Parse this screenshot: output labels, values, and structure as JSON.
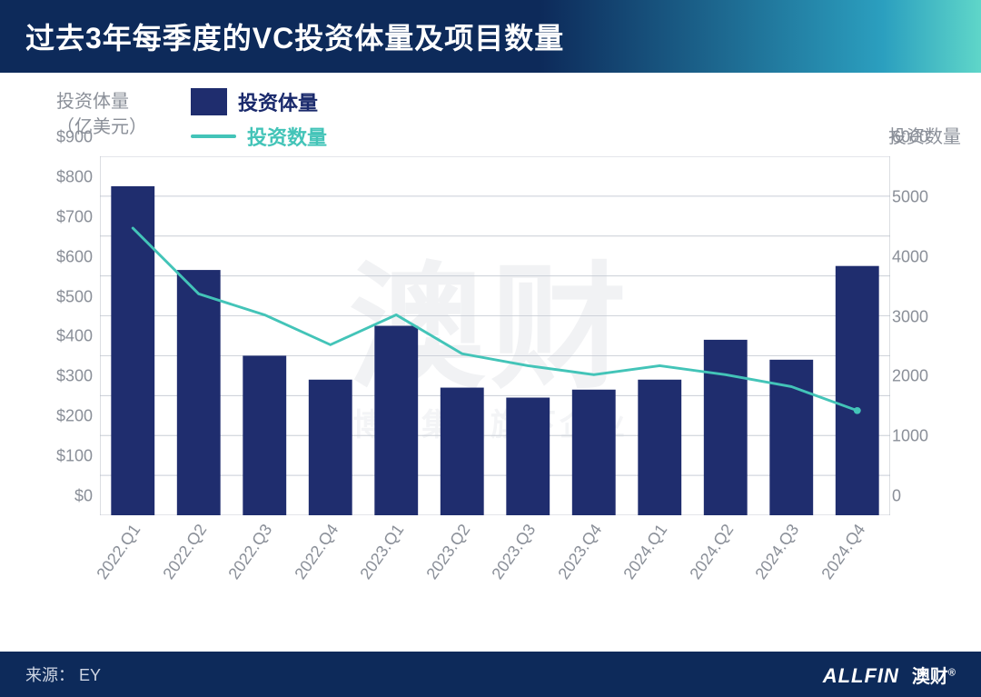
{
  "title": "过去3年每季度的VC投资体量及项目数量",
  "y_left_axis_title_line1": "投资体量",
  "y_left_axis_title_line2": "（亿美元）",
  "y_right_axis_title": "投资数量",
  "legend": {
    "bar_label": "投资体量",
    "line_label": "投资数量",
    "bar_color": "#1f2d6e",
    "line_color": "#43c4b8"
  },
  "watermark_main": "澳财",
  "watermark_sub": "博满集团旗下企业",
  "source_label": "来源：",
  "source_value": "EY",
  "brand_en": "ALLFIN",
  "brand_cn": "澳财",
  "brand_reg": "®",
  "chart": {
    "type": "bar+line",
    "categories": [
      "2022.Q1",
      "2022.Q2",
      "2022.Q3",
      "2022.Q4",
      "2023.Q1",
      "2023.Q2",
      "2023.Q3",
      "2023.Q4",
      "2024.Q1",
      "2024.Q2",
      "2024.Q3",
      "2024.Q4"
    ],
    "bar_values": [
      825,
      615,
      400,
      340,
      475,
      320,
      295,
      315,
      340,
      440,
      390,
      625
    ],
    "line_values": [
      4800,
      3700,
      3350,
      2850,
      3350,
      2700,
      2500,
      2350,
      2500,
      2350,
      2150,
      1750
    ],
    "y_left": {
      "min": 0,
      "max": 900,
      "step": 100,
      "prefix": "$"
    },
    "y_right": {
      "min": 0,
      "max": 6000,
      "step": 1000,
      "prefix": ""
    },
    "bar_color": "#1f2d6e",
    "line_color": "#43c4b8",
    "line_width": 3,
    "grid_color": "#c9ced6",
    "axis_line_color": "#b7bcc5",
    "tick_font_color": "#8a8f98",
    "tick_font_size": 18,
    "bar_width_ratio": 0.66,
    "background_color": "#ffffff"
  },
  "footer_bg": "#0d2a5a",
  "title_gradient_from": "#0d2a5a",
  "title_gradient_to": "#5fd6c9"
}
